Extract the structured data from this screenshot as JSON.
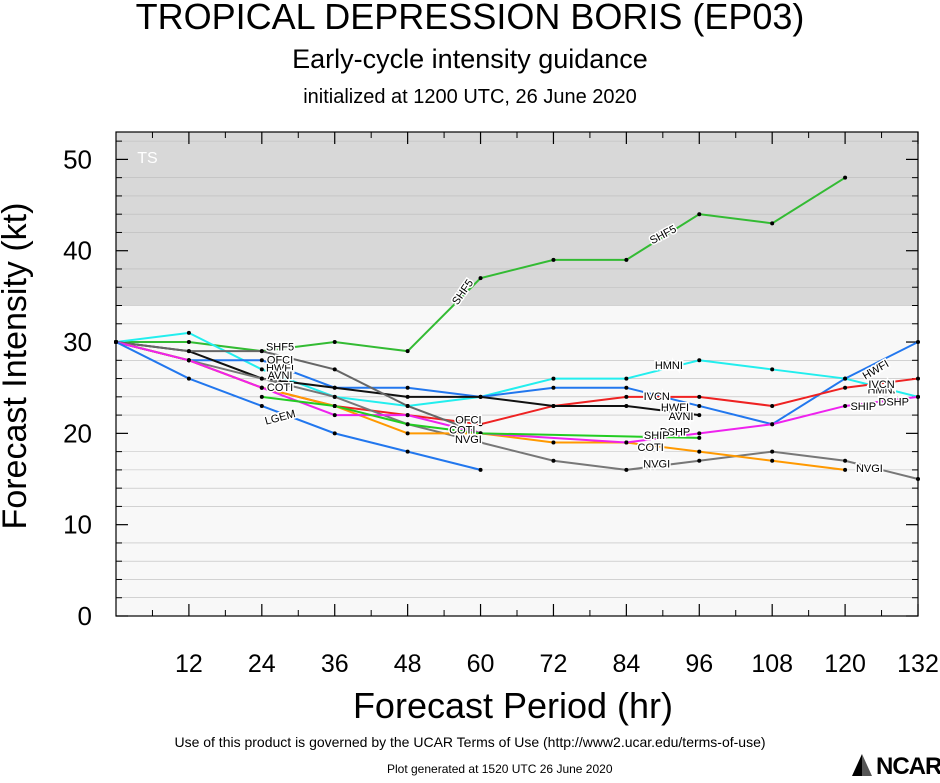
{
  "header": {
    "title": "TROPICAL DEPRESSION BORIS (EP03)",
    "subtitle": "Early-cycle intensity guidance",
    "initialized": "initialized at 1200 UTC, 26 June 2020"
  },
  "footer": {
    "terms": "Use of this product is governed by the UCAR Terms of Use (http://www2.ucar.edu/terms-of-use)",
    "generated": "Plot generated at 1520 UTC   26 June 2020",
    "logo_text": "NCAR"
  },
  "chart_data": {
    "type": "line",
    "xlabel": "Forecast Period (hr)",
    "ylabel": "Forecast Intensity (kt)",
    "xlim": [
      0,
      132
    ],
    "ylim": [
      0,
      53
    ],
    "xticks": [
      12,
      24,
      36,
      48,
      60,
      72,
      84,
      96,
      108,
      120,
      132
    ],
    "yticks": [
      0,
      10,
      20,
      30,
      40,
      50
    ],
    "bands": [
      {
        "label": "TS",
        "from": 34,
        "to": 53,
        "color": "#d8d8d8"
      }
    ],
    "plot_background": "#f8f8f8",
    "grid": "horizontal minor lines",
    "series": [
      {
        "name": "SHF5",
        "color": "#33bb33",
        "x": [
          0,
          12,
          24,
          36,
          48,
          60,
          72,
          84,
          96,
          108,
          120
        ],
        "y": [
          30,
          30,
          29,
          30,
          29,
          37,
          39,
          39,
          44,
          43,
          48
        ],
        "labels": [
          {
            "x": 27,
            "y": 29.5,
            "rot": 0
          },
          {
            "x": 57,
            "y": 35.5,
            "rot": -55
          },
          {
            "x": 90,
            "y": 41.8,
            "rot": -28
          }
        ]
      },
      {
        "name": "HMNI",
        "color": "#22eeee",
        "x": [
          0,
          12,
          24,
          36,
          48,
          60,
          72,
          84,
          96,
          108,
          120,
          132
        ],
        "y": [
          30,
          31,
          27,
          24,
          23,
          24,
          26,
          26,
          28,
          27,
          26,
          24
        ],
        "labels": [
          {
            "x": 91,
            "y": 27.5,
            "rot": 0
          },
          {
            "x": 126,
            "y": 24.8,
            "rot": 0
          }
        ]
      },
      {
        "name": "HWFI",
        "color": "#2277ee",
        "x": [
          0,
          12,
          24,
          36,
          48,
          60,
          72,
          84,
          96,
          108,
          120,
          132
        ],
        "y": [
          30,
          28,
          28,
          25,
          25,
          24,
          25,
          25,
          23,
          21,
          26,
          30
        ],
        "labels": [
          {
            "x": 27,
            "y": 27.2,
            "rot": 0
          },
          {
            "x": 92,
            "y": 22.9,
            "rot": 0
          },
          {
            "x": 125,
            "y": 27,
            "rot": -30
          }
        ]
      },
      {
        "name": "IVCN",
        "color": "#ee2222",
        "x": [
          0,
          12,
          24,
          36,
          48,
          60,
          72,
          84,
          96,
          108,
          120,
          132
        ],
        "y": [
          30,
          28,
          25,
          23,
          22,
          21,
          23,
          24,
          24,
          23,
          25,
          26
        ],
        "labels": [
          {
            "x": 89,
            "y": 24.1,
            "rot": 0
          },
          {
            "x": 126,
            "y": 25.4,
            "rot": 0
          }
        ]
      },
      {
        "name": "AVNI",
        "color": "#111111",
        "x": [
          0,
          12,
          24,
          36,
          48,
          60,
          72,
          84,
          96
        ],
        "y": [
          30,
          29,
          26,
          25,
          24,
          24,
          23,
          23,
          22
        ],
        "labels": [
          {
            "x": 27,
            "y": 26.4,
            "rot": 0
          },
          {
            "x": 93,
            "y": 21.9,
            "rot": 0
          }
        ]
      },
      {
        "name": "OFCI",
        "color": "#666666",
        "x": [
          0,
          12,
          24,
          36,
          48,
          60
        ],
        "y": [
          30,
          29,
          29,
          27,
          23,
          20
        ],
        "labels": [
          {
            "x": 27,
            "y": 28.1,
            "rot": 0
          },
          {
            "x": 58,
            "y": 21.5,
            "rot": 0
          }
        ]
      },
      {
        "name": "NVGI",
        "color": "#777777",
        "x": [
          0,
          12,
          24,
          36,
          48,
          60,
          72,
          84,
          96,
          108,
          120,
          132
        ],
        "y": [
          30,
          28,
          26,
          24,
          21,
          19,
          17,
          16,
          17,
          18,
          17,
          15
        ],
        "labels": [
          {
            "x": 58,
            "y": 19.4,
            "rot": 0
          },
          {
            "x": 89,
            "y": 16.7,
            "rot": 0
          },
          {
            "x": 124,
            "y": 16.2,
            "rot": 0
          }
        ]
      },
      {
        "name": "COTI",
        "color": "#ff9900",
        "x": [
          0,
          12,
          24,
          36,
          48,
          60,
          72,
          84,
          96,
          108,
          120
        ],
        "y": [
          30,
          28,
          25,
          23,
          20,
          20,
          19,
          19,
          18,
          17,
          16
        ],
        "labels": [
          {
            "x": 27,
            "y": 25.1,
            "rot": 0
          },
          {
            "x": 57,
            "y": 20.4,
            "rot": 0
          },
          {
            "x": 88,
            "y": 18.5,
            "rot": 0
          }
        ]
      },
      {
        "name": "DSHP",
        "color": "#ee22ee",
        "x": [
          0,
          12,
          24,
          36,
          48,
          60,
          84,
          96,
          108,
          120,
          132
        ],
        "y": [
          30,
          28,
          25,
          22,
          22,
          20,
          19,
          20,
          21,
          23,
          24
        ],
        "labels": [
          {
            "x": 92,
            "y": 20.2,
            "rot": 0
          },
          {
            "x": 128,
            "y": 23.5,
            "rot": 0
          }
        ]
      },
      {
        "name": "LGEM",
        "color": "#2277ee",
        "x": [
          0,
          12,
          24,
          36,
          48,
          60
        ],
        "y": [
          30,
          26,
          23,
          20,
          18,
          16
        ],
        "labels": [
          {
            "x": 27,
            "y": 21.8,
            "rot": -15
          }
        ]
      },
      {
        "name": "SHIP",
        "color": "#22cc22",
        "x": [
          24,
          36,
          48,
          60,
          96
        ],
        "y": [
          24,
          23,
          21,
          20,
          19.5
        ],
        "labels": [
          {
            "x": 89,
            "y": 19.8,
            "rot": 0
          },
          {
            "x": 123,
            "y": 23,
            "rot": 0
          }
        ]
      }
    ]
  }
}
